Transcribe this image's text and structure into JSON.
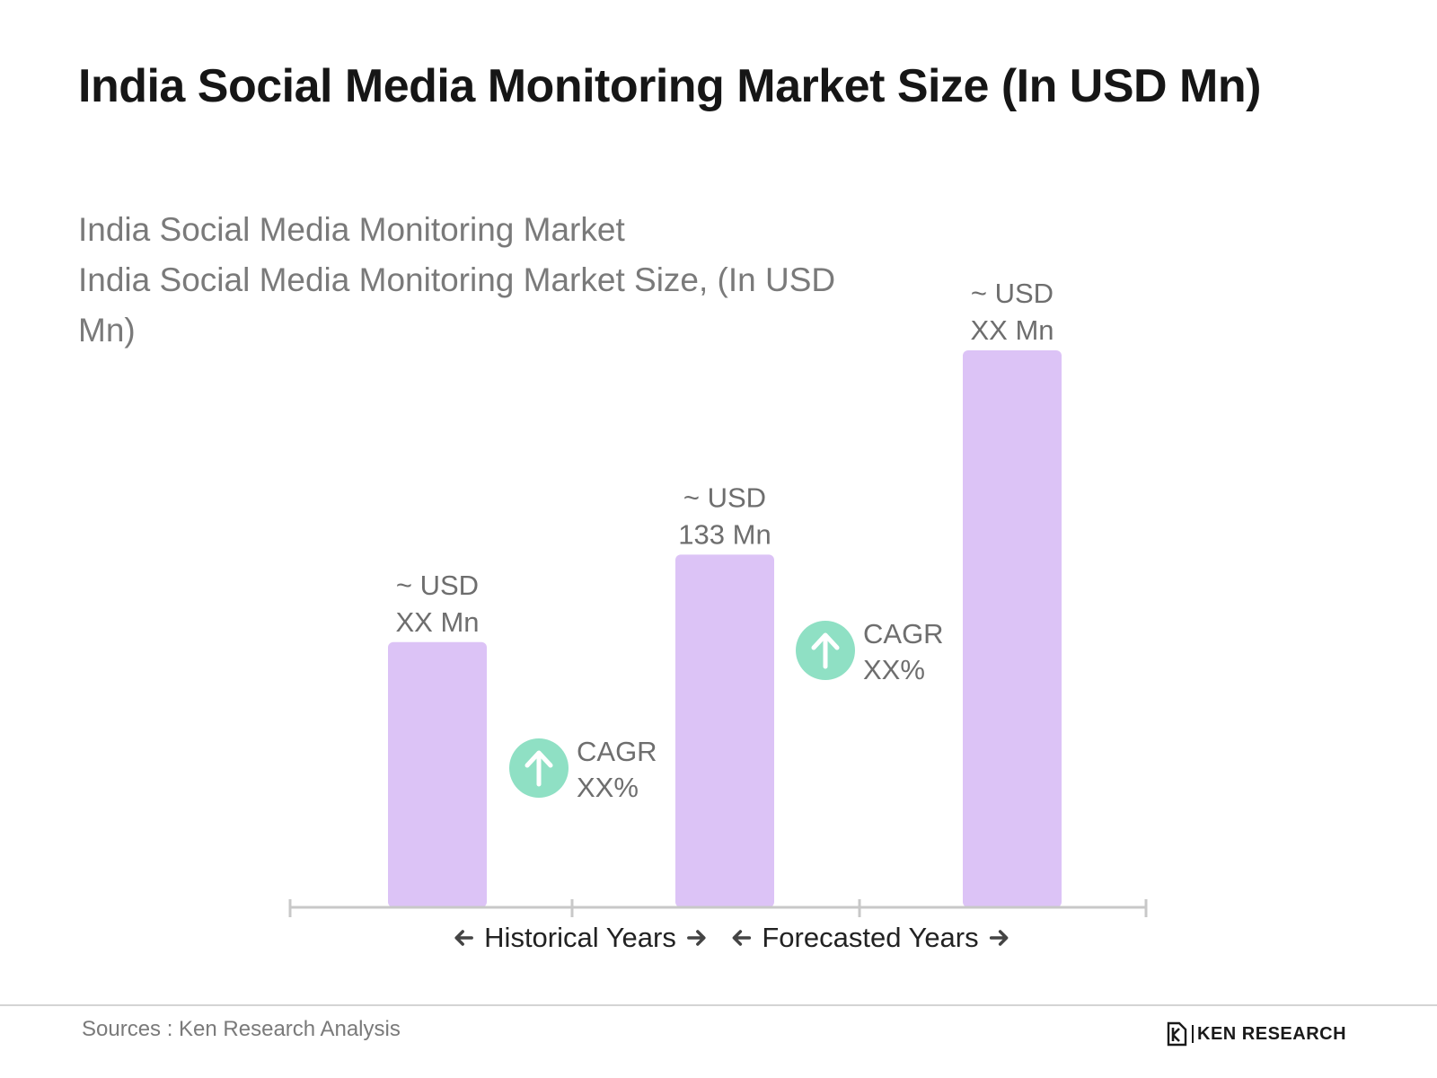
{
  "header": {
    "title": "India Social Media Monitoring Market Size (In USD Mn)"
  },
  "chart_data": {
    "type": "bar",
    "subtitle_line1": "India Social Media Monitoring Market",
    "subtitle_line2": "India Social Media Monitoring Market Size, (In USD Mn)",
    "categories": [
      "",
      "",
      ""
    ],
    "values": [
      100,
      133,
      210
    ],
    "data_labels": [
      {
        "line1": "~  USD",
        "line2": "XX Mn"
      },
      {
        "line1": "~  USD",
        "line2": "133 Mn"
      },
      {
        "line1": "~ USD",
        "line2": "XX Mn"
      }
    ],
    "cagr": [
      {
        "line1": "CAGR",
        "line2": "XX%"
      },
      {
        "line1": "CAGR",
        "line2": "XX%"
      }
    ],
    "periods": [
      {
        "label": "Historical Years"
      },
      {
        "label": "Forecasted Years"
      }
    ],
    "bar_color": "#dcc3f6",
    "cagr_color": "#8fe0c4",
    "axis_color": "#c8c8c8",
    "grid": false,
    "legend": "none",
    "ylim": [
      0,
      210
    ]
  },
  "footer": {
    "source": "Sources : Ken Research Analysis",
    "logo_text": "KEN RESEARCH"
  },
  "icons": {
    "cagr": "arrow-up-circle-icon",
    "logo": "ken-research-logo-icon"
  }
}
